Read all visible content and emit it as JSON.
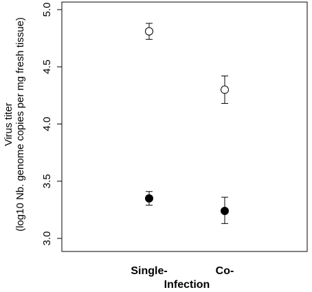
{
  "chart_data": {
    "type": "scatter",
    "title": "",
    "xlabel": "Infection",
    "ylabel_line1": "Virus titer",
    "ylabel_line2": "(log10 Nb. genome copies per mg fresh tissue)",
    "categories": [
      "Single-",
      "Co-"
    ],
    "ylim": [
      3.0,
      5.0
    ],
    "yticks": [
      "3.0",
      "3.5",
      "4.0",
      "4.5",
      "5.0"
    ],
    "grid": false,
    "legend": "none",
    "series": [
      {
        "marker": "open-circle",
        "values": [
          4.81,
          4.3
        ],
        "err_low": [
          4.74,
          4.18
        ],
        "err_high": [
          4.88,
          4.42
        ]
      },
      {
        "marker": "filled-circle",
        "values": [
          3.35,
          3.24
        ],
        "err_low": [
          3.29,
          3.13
        ],
        "err_high": [
          3.41,
          3.36
        ]
      }
    ]
  }
}
